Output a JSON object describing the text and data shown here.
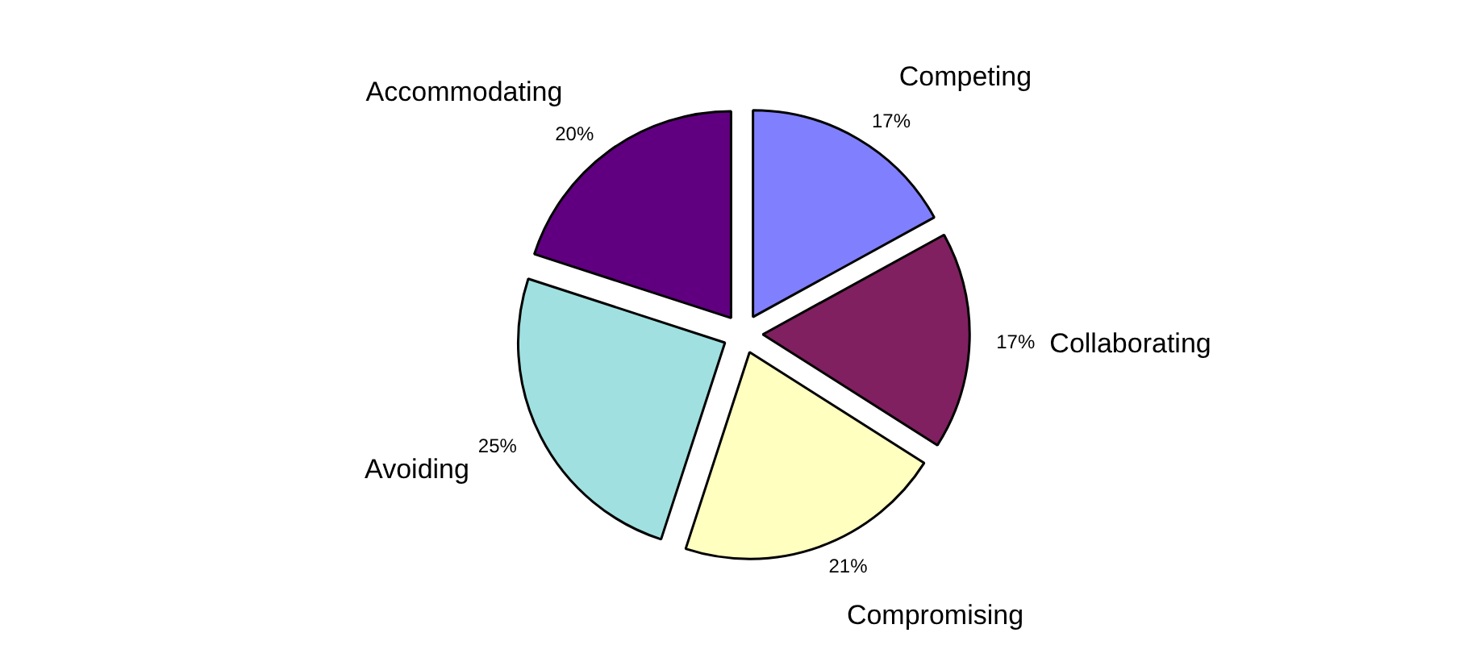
{
  "chart_data": {
    "type": "pie",
    "categories": [
      "Competing",
      "Collaborating",
      "Compromising",
      "Avoiding",
      "Accommodating"
    ],
    "values": [
      17,
      17,
      21,
      25,
      20
    ],
    "colors": [
      "#8080ff",
      "#802060",
      "#ffffc0",
      "#a0e0e0",
      "#600080"
    ],
    "value_labels": [
      "17%",
      "17%",
      "21%",
      "25%",
      "20%"
    ]
  }
}
